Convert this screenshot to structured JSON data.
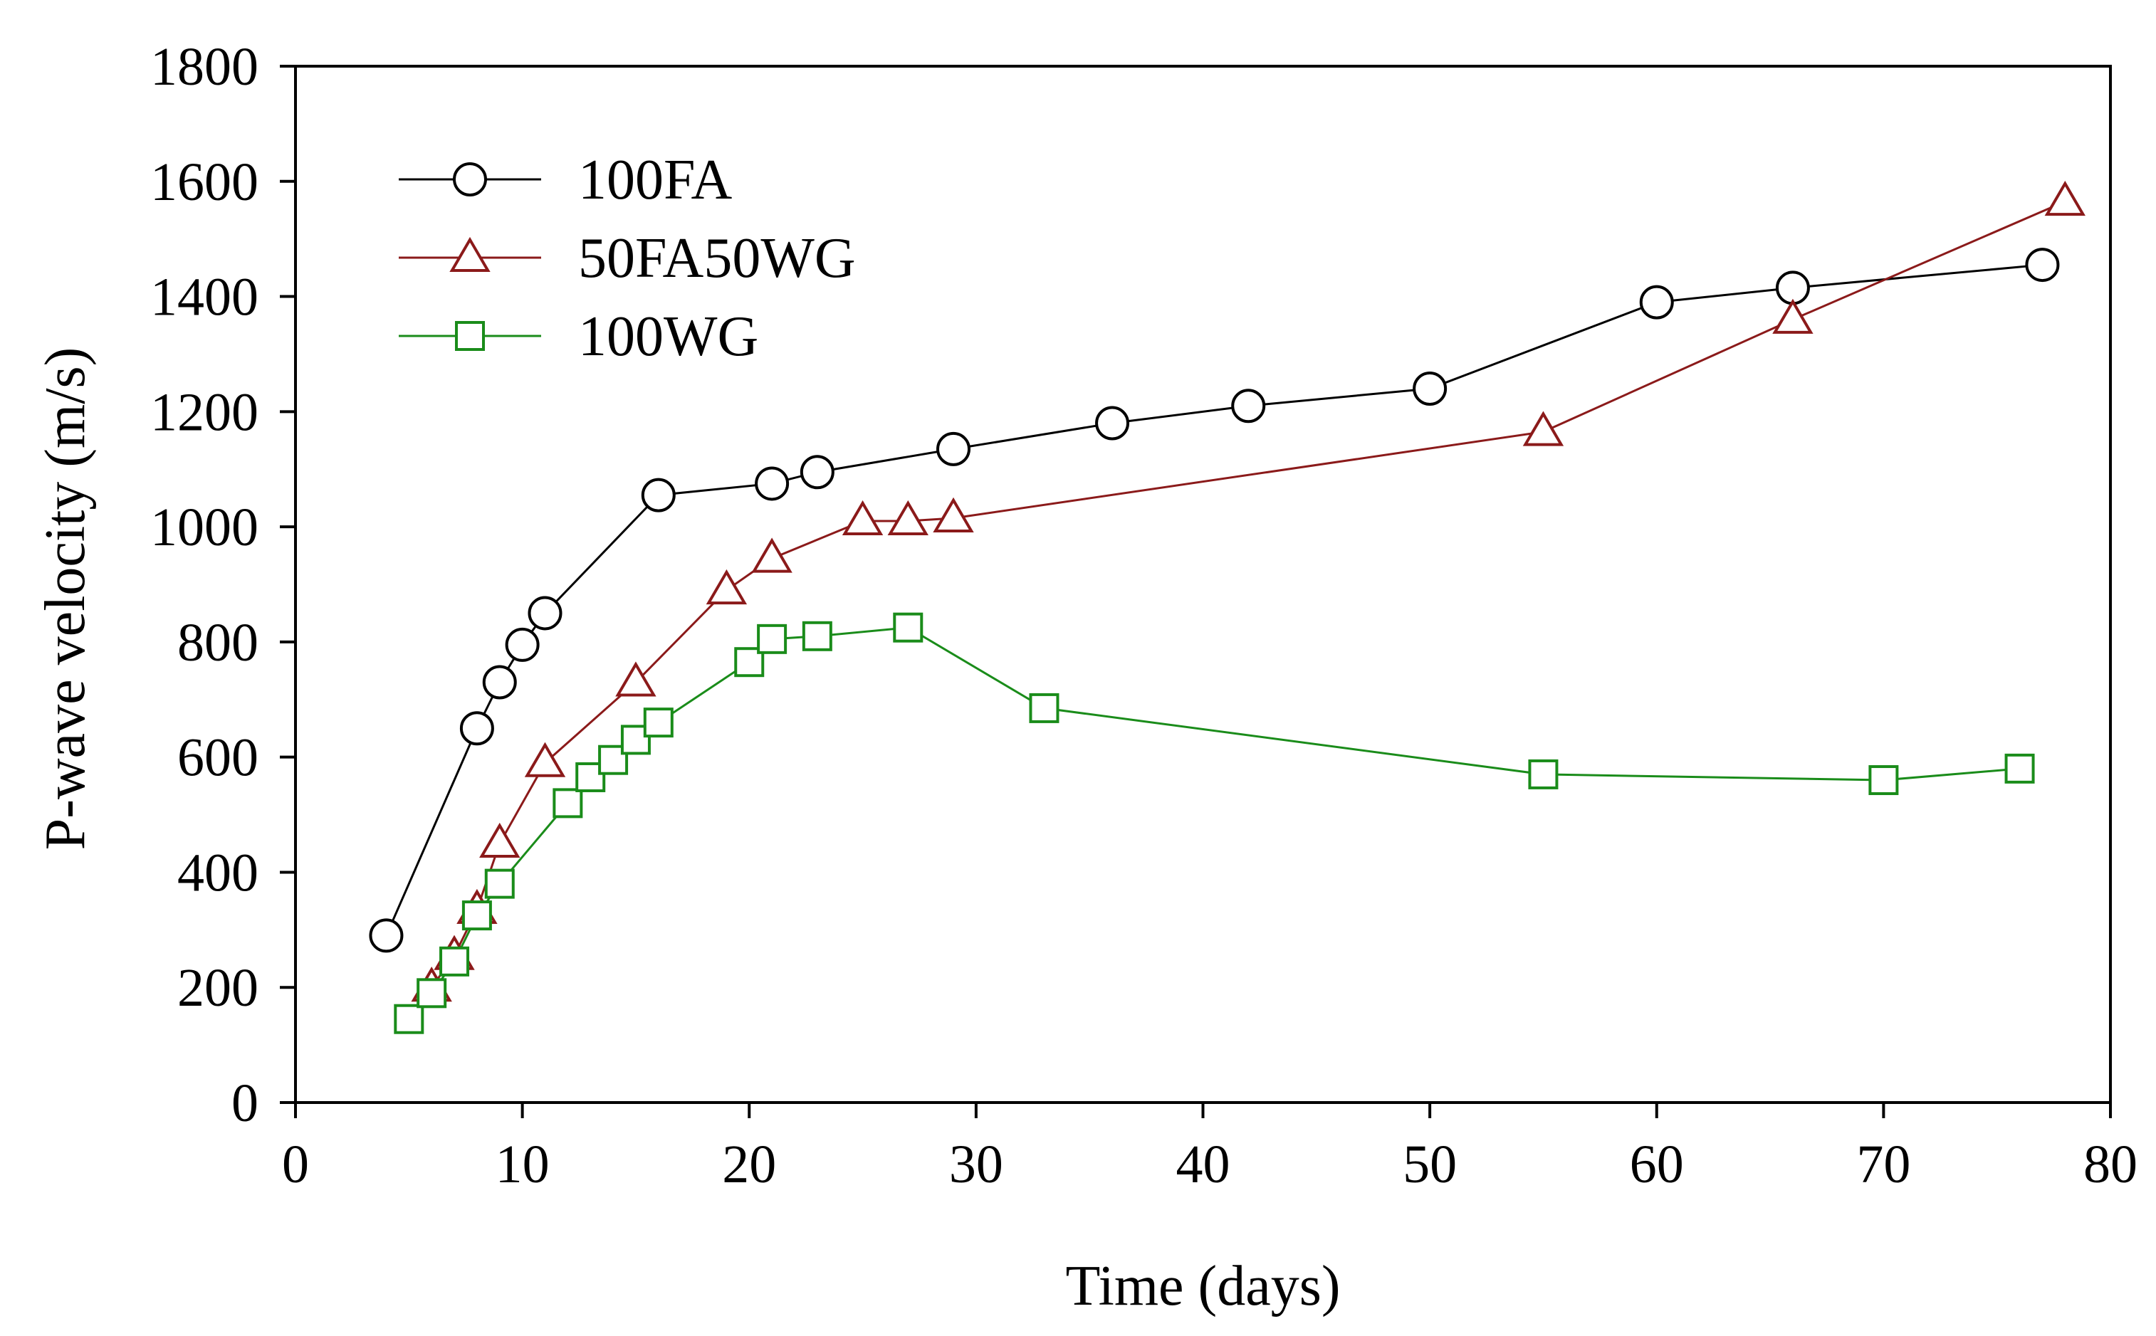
{
  "chart_data": {
    "type": "line",
    "title": "",
    "xlabel": "Time (days)",
    "ylabel": "P-wave velocity (m/s)",
    "xlim": [
      0,
      80
    ],
    "ylim": [
      0,
      1800
    ],
    "xticks": [
      0,
      10,
      20,
      30,
      40,
      50,
      60,
      70,
      80
    ],
    "yticks": [
      0,
      200,
      400,
      600,
      800,
      1000,
      1200,
      1400,
      1600,
      1800
    ],
    "grid": false,
    "legend_position": "top-left",
    "series": [
      {
        "name": "100FA",
        "marker": "circle",
        "color": "#000000",
        "x": [
          4,
          8,
          9,
          10,
          11,
          16,
          21,
          23,
          29,
          36,
          42,
          50,
          60,
          66,
          77
        ],
        "y": [
          290,
          650,
          730,
          795,
          850,
          1055,
          1075,
          1095,
          1135,
          1180,
          1210,
          1240,
          1390,
          1415,
          1455
        ]
      },
      {
        "name": "50FA50WG",
        "marker": "triangle",
        "color": "#8b1a1a",
        "x": [
          6,
          7,
          8,
          9,
          11,
          15,
          19,
          21,
          25,
          27,
          29,
          55,
          66,
          78
        ],
        "y": [
          200,
          255,
          335,
          450,
          590,
          730,
          890,
          945,
          1010,
          1010,
          1015,
          1165,
          1360,
          1565
        ]
      },
      {
        "name": "100WG",
        "marker": "square",
        "color": "#1a8c1a",
        "x": [
          5,
          6,
          7,
          8,
          9,
          12,
          13,
          14,
          15,
          16,
          20,
          21,
          23,
          27,
          33,
          55,
          70,
          76
        ],
        "y": [
          145,
          190,
          245,
          325,
          380,
          520,
          565,
          595,
          630,
          660,
          765,
          805,
          810,
          825,
          685,
          570,
          560,
          580
        ]
      }
    ]
  }
}
